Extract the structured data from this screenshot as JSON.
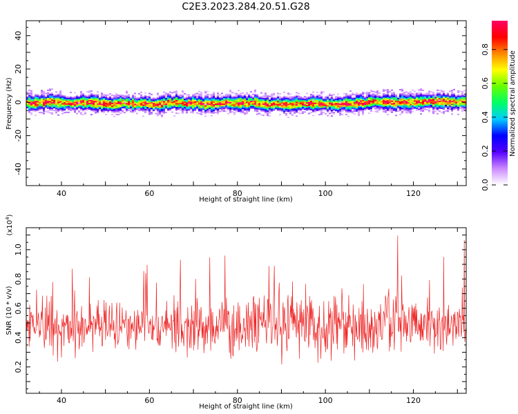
{
  "figure_title": "C2E3.2023.284.20.51.G28",
  "chart_data": [
    {
      "type": "heatmap",
      "name": "spectrogram",
      "xlabel": "Height of straight line (km)",
      "ylabel": "Frequency (Hz)",
      "xlim": [
        32,
        132
      ],
      "ylim": [
        -50,
        49
      ],
      "xticks": [
        40,
        60,
        80,
        100,
        120
      ],
      "yticks": [
        -40,
        -20,
        0,
        20,
        40
      ],
      "ridge_frequency_hz": 0,
      "colorbar": {
        "label": "Normalized spectral amplitude",
        "range": [
          0,
          0.97
        ],
        "ticks": [
          "0.0",
          "0.2",
          "0.4",
          "0.6",
          "0.8"
        ],
        "tick_values": [
          0.0,
          0.2,
          0.4,
          0.6,
          0.8
        ],
        "colors": [
          "#ffffff",
          "#cc88ff",
          "#5500ff",
          "#0000ff",
          "#00ccff",
          "#00ff66",
          "#66ff00",
          "#ffff00",
          "#ff8800",
          "#ff0000",
          "#ff0066"
        ]
      }
    },
    {
      "type": "line",
      "name": "snr",
      "xlabel": "Height of straight line (km)",
      "ylabel": "SNR (10 * v/v)",
      "y_multiplier": "(x10",
      "y_multiplier_exp": "4",
      "y_multiplier_close": ")",
      "xlim": [
        32,
        132
      ],
      "ylim": [
        0.02,
        1.15
      ],
      "xticks": [
        40,
        60,
        80,
        100,
        120
      ],
      "yticks": [
        0.2,
        0.4,
        0.6,
        0.8,
        1.0
      ],
      "ytick_labels": [
        "0.2",
        "0.4",
        "0.6",
        "0.8",
        "1.0"
      ],
      "color": "#ee2222",
      "mean": 0.48,
      "spread": 0.18
    }
  ]
}
